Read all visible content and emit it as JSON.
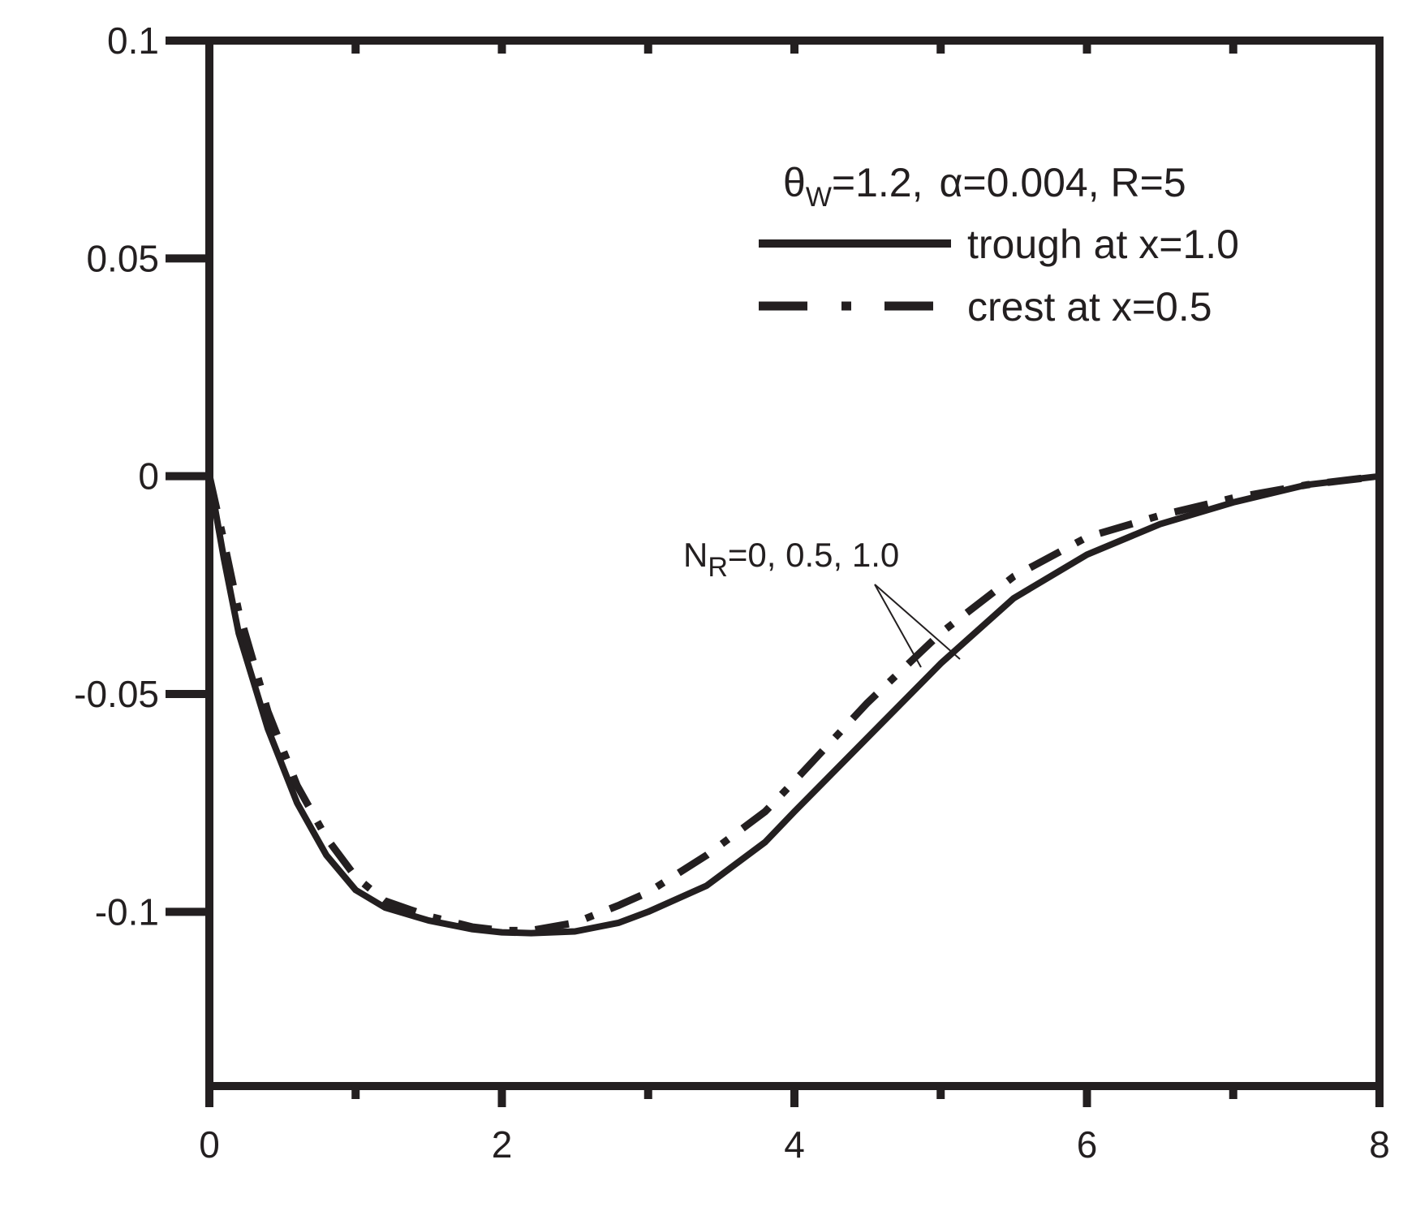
{
  "chart_data": {
    "type": "line",
    "title": "",
    "xlabel": "",
    "ylabel": "",
    "xlim": [
      0,
      8
    ],
    "ylim": [
      -0.14,
      0.1
    ],
    "x_ticks": [
      0,
      2,
      4,
      6,
      8
    ],
    "x_tick_labels": [
      "0",
      "2",
      "4",
      "6",
      "8"
    ],
    "y_ticks": [
      0.1,
      0.05,
      0,
      -0.05,
      -0.1
    ],
    "y_tick_labels": [
      "0.1",
      "0.05",
      "0",
      "-0.05",
      "-0.1"
    ],
    "grid": false,
    "legend_position": "top-right",
    "legend_heading": {
      "theta": "θ",
      "theta_sub": "W",
      "theta_value": "=1.2,",
      "alpha_text": "α=0.004, R=5"
    },
    "annotation": {
      "prefix": "N",
      "sub": "R",
      "text": "=0, 0.5, 1.0"
    },
    "series": [
      {
        "name": "trough at x=1.0",
        "style": "solid",
        "x": [
          0,
          0.1,
          0.2,
          0.4,
          0.6,
          0.8,
          1.0,
          1.2,
          1.5,
          1.8,
          2.0,
          2.2,
          2.5,
          2.8,
          3.0,
          3.4,
          3.8,
          4.0,
          4.5,
          5.0,
          5.5,
          6.0,
          6.5,
          7.0,
          7.5,
          8.0
        ],
        "y": [
          0,
          -0.019,
          -0.036,
          -0.058,
          -0.075,
          -0.087,
          -0.095,
          -0.099,
          -0.102,
          -0.104,
          -0.1047,
          -0.1049,
          -0.1045,
          -0.1025,
          -0.1,
          -0.094,
          -0.084,
          -0.077,
          -0.06,
          -0.043,
          -0.028,
          -0.018,
          -0.011,
          -0.006,
          -0.002,
          0
        ]
      },
      {
        "name": "crest at x=0.5",
        "style": "dash-dot",
        "x": [
          0,
          0.1,
          0.2,
          0.4,
          0.6,
          0.8,
          1.0,
          1.2,
          1.5,
          1.8,
          2.0,
          2.2,
          2.5,
          2.8,
          3.0,
          3.4,
          3.8,
          4.0,
          4.5,
          5.0,
          5.5,
          6.0,
          6.5,
          7.0,
          7.5,
          8.0
        ],
        "y": [
          0,
          -0.015,
          -0.031,
          -0.054,
          -0.071,
          -0.083,
          -0.092,
          -0.0975,
          -0.101,
          -0.1035,
          -0.1043,
          -0.1043,
          -0.1025,
          -0.0985,
          -0.0955,
          -0.087,
          -0.077,
          -0.07,
          -0.052,
          -0.036,
          -0.023,
          -0.014,
          -0.009,
          -0.005,
          -0.002,
          0
        ]
      }
    ]
  }
}
